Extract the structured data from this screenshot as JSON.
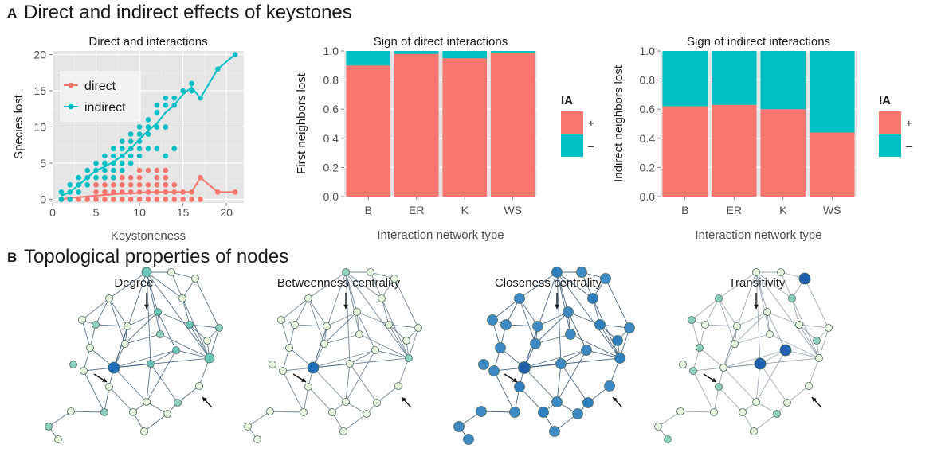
{
  "panel_a": {
    "letter": "A",
    "title": "Direct and indirect effects of keystones"
  },
  "panel_b": {
    "letter": "B",
    "title": "Topological properties of nodes",
    "network_titles": [
      "Degree",
      "Betweenness centrality",
      "Closeness centrality",
      "Transitivity"
    ]
  },
  "colors": {
    "direct": "#F8766D",
    "indirect": "#00BFC4",
    "panel_bg": "#E5E5E5",
    "grid": "#FFFFFF",
    "axis_text": "#4D4D4D",
    "node_light": "#E8F4DE",
    "node_mid": "#8CCFBF",
    "node_dark": "#1F6FB8",
    "edge": "#3A5A78"
  },
  "chart_data": [
    {
      "type": "scatter",
      "title": "Direct and interactions",
      "xlabel": "Keystoneness",
      "ylabel": "Species lost",
      "xlim": [
        0,
        22
      ],
      "ylim": [
        -0.5,
        20.5
      ],
      "xticks": [
        0,
        5,
        10,
        15,
        20
      ],
      "yticks": [
        0,
        5,
        10,
        15,
        20
      ],
      "grid": true,
      "legend": "top-left",
      "series": [
        {
          "name": "direct",
          "points": [
            [
              1,
              0
            ],
            [
              2,
              0
            ],
            [
              3,
              0
            ],
            [
              4,
              0
            ],
            [
              5,
              0
            ],
            [
              6,
              0
            ],
            [
              7,
              0
            ],
            [
              8,
              0
            ],
            [
              9,
              0
            ],
            [
              10,
              0
            ],
            [
              11,
              0
            ],
            [
              12,
              0
            ],
            [
              13,
              0
            ],
            [
              14,
              0
            ],
            [
              15,
              0
            ],
            [
              16,
              0
            ],
            [
              17,
              0
            ],
            [
              5,
              1
            ],
            [
              6,
              1
            ],
            [
              7,
              1
            ],
            [
              8,
              1
            ],
            [
              9,
              1
            ],
            [
              10,
              1
            ],
            [
              11,
              1
            ],
            [
              12,
              1
            ],
            [
              13,
              1
            ],
            [
              14,
              1
            ],
            [
              15,
              1
            ],
            [
              16,
              1
            ],
            [
              5,
              2
            ],
            [
              6,
              2
            ],
            [
              7,
              2
            ],
            [
              8,
              2
            ],
            [
              9,
              2
            ],
            [
              10,
              2
            ],
            [
              11,
              2
            ],
            [
              12,
              2
            ],
            [
              13,
              2
            ],
            [
              14,
              2
            ],
            [
              6,
              3
            ],
            [
              7,
              3
            ],
            [
              8,
              3
            ],
            [
              9,
              3
            ],
            [
              10,
              3
            ],
            [
              12,
              3
            ],
            [
              13,
              3
            ],
            [
              10,
              4
            ],
            [
              11,
              4
            ],
            [
              12,
              4
            ],
            [
              13,
              4
            ],
            [
              17,
              3
            ],
            [
              19,
              1
            ],
            [
              21,
              1
            ]
          ],
          "mean_line": [
            [
              1,
              0
            ],
            [
              2,
              0.2
            ],
            [
              3,
              0.3
            ],
            [
              4,
              0.4
            ],
            [
              5,
              0.5
            ],
            [
              6,
              0.6
            ],
            [
              7,
              0.7
            ],
            [
              8,
              0.8
            ],
            [
              9,
              0.8
            ],
            [
              10,
              0.9
            ],
            [
              11,
              1
            ],
            [
              12,
              1
            ],
            [
              13,
              1
            ],
            [
              14,
              1
            ],
            [
              15,
              1
            ],
            [
              16,
              1
            ],
            [
              17,
              3
            ],
            [
              19,
              1
            ],
            [
              21,
              1
            ]
          ]
        },
        {
          "name": "indirect",
          "points": [
            [
              1,
              0
            ],
            [
              1,
              1
            ],
            [
              2,
              0
            ],
            [
              2,
              1
            ],
            [
              2,
              2
            ],
            [
              3,
              1
            ],
            [
              3,
              2
            ],
            [
              3,
              3
            ],
            [
              4,
              2
            ],
            [
              4,
              3
            ],
            [
              4,
              4
            ],
            [
              5,
              3
            ],
            [
              5,
              4
            ],
            [
              5,
              5
            ],
            [
              6,
              3
            ],
            [
              6,
              4
            ],
            [
              6,
              5
            ],
            [
              6,
              6
            ],
            [
              7,
              3
            ],
            [
              7,
              4
            ],
            [
              7,
              5
            ],
            [
              7,
              6
            ],
            [
              7,
              7
            ],
            [
              8,
              4
            ],
            [
              8,
              5
            ],
            [
              8,
              6
            ],
            [
              8,
              7
            ],
            [
              8,
              8
            ],
            [
              9,
              5
            ],
            [
              9,
              6
            ],
            [
              9,
              7
            ],
            [
              9,
              8
            ],
            [
              9,
              9
            ],
            [
              10,
              6
            ],
            [
              10,
              7
            ],
            [
              10,
              8
            ],
            [
              10,
              9
            ],
            [
              10,
              10
            ],
            [
              11,
              7
            ],
            [
              11,
              9
            ],
            [
              11,
              10
            ],
            [
              11,
              11
            ],
            [
              12,
              7
            ],
            [
              12,
              10
            ],
            [
              12,
              12
            ],
            [
              12,
              13
            ],
            [
              13,
              6
            ],
            [
              13,
              10
            ],
            [
              13,
              13
            ],
            [
              13,
              14
            ],
            [
              14,
              7
            ],
            [
              14,
              13
            ],
            [
              14,
              14
            ],
            [
              15,
              15
            ],
            [
              16,
              15
            ],
            [
              16,
              16
            ],
            [
              17,
              14
            ],
            [
              19,
              18
            ],
            [
              21,
              20
            ]
          ],
          "mean_line": [
            [
              1,
              0.5
            ],
            [
              2,
              1
            ],
            [
              3,
              2
            ],
            [
              4,
              3
            ],
            [
              5,
              4
            ],
            [
              6,
              4.5
            ],
            [
              7,
              5.2
            ],
            [
              8,
              6
            ],
            [
              9,
              7
            ],
            [
              10,
              8.3
            ],
            [
              11,
              9.5
            ],
            [
              12,
              10.5
            ],
            [
              13,
              12
            ],
            [
              14,
              13
            ],
            [
              15,
              14.5
            ],
            [
              16,
              15.5
            ],
            [
              17,
              14
            ],
            [
              19,
              18
            ],
            [
              21,
              20
            ]
          ]
        }
      ]
    },
    {
      "type": "bar",
      "title": "Sign of direct interactions",
      "xlabel": "Interaction network type",
      "ylabel": "First neighbors lost",
      "categories": [
        "B",
        "ER",
        "K",
        "WS"
      ],
      "ylim": [
        0,
        1
      ],
      "yticks": [
        0.0,
        0.2,
        0.4,
        0.6,
        0.8,
        1.0
      ],
      "stacked": true,
      "legend_title": "IA",
      "series": [
        {
          "name": "+",
          "values": [
            0.9,
            0.98,
            0.95,
            0.99
          ]
        },
        {
          "name": "–",
          "values": [
            0.1,
            0.02,
            0.05,
            0.01
          ]
        }
      ]
    },
    {
      "type": "bar",
      "title": "Sign of indirect interactions",
      "xlabel": "Interaction network type",
      "ylabel": "Indirect neighbors lost",
      "categories": [
        "B",
        "ER",
        "K",
        "WS"
      ],
      "ylim": [
        0,
        1
      ],
      "yticks": [
        0.0,
        0.2,
        0.4,
        0.6,
        0.8,
        1.0
      ],
      "stacked": true,
      "legend_title": "IA",
      "series": [
        {
          "name": "+",
          "values": [
            0.62,
            0.63,
            0.6,
            0.44
          ]
        },
        {
          "name": "–",
          "values": [
            0.38,
            0.37,
            0.4,
            0.56
          ]
        }
      ]
    }
  ]
}
